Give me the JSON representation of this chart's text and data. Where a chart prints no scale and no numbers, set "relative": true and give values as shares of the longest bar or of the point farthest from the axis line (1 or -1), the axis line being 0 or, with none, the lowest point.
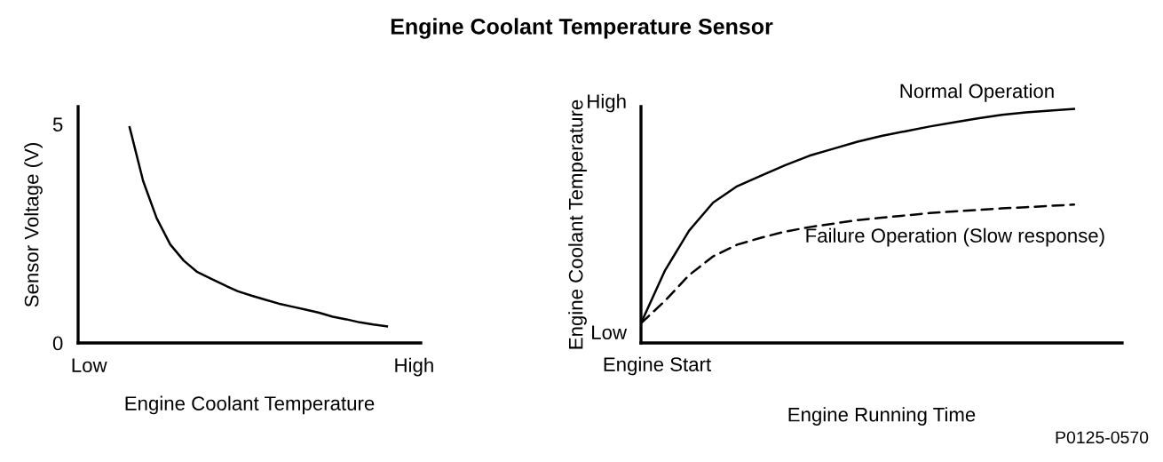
{
  "chart_data": [
    {
      "type": "line",
      "title": "Engine Coolant Temperature Sensor",
      "xlabel": "Engine Coolant Temperature",
      "ylabel": "Sensor Voltage (V)",
      "categories": [
        "Low",
        null,
        null,
        null,
        null,
        null,
        null,
        null,
        null,
        null,
        null,
        null,
        null,
        null,
        null,
        null,
        null,
        null,
        null,
        null,
        null,
        null,
        null,
        null,
        "High"
      ],
      "series": [
        {
          "color": "#000000",
          "values": [
            null,
            null,
            null,
            4.93,
            3.7,
            2.85,
            2.25,
            1.88,
            1.62,
            1.47,
            1.32,
            1.18,
            1.08,
            0.99,
            0.9,
            0.83,
            0.76,
            0.69,
            0.6,
            0.54,
            0.47,
            0.42,
            0.38,
            null,
            null
          ]
        }
      ],
      "ylim": [
        0,
        5.4
      ],
      "yticks": [
        0,
        5
      ]
    },
    {
      "type": "line",
      "relative": true,
      "xlabel": "Engine Running Time",
      "ylabel": "Engine Coolant Temperature",
      "categories": [
        null,
        null,
        null,
        null,
        null,
        null,
        null,
        null,
        null,
        null,
        null,
        null,
        null,
        null,
        null,
        null,
        null,
        null,
        null
      ],
      "series": [
        {
          "name": "Normal Operation",
          "color": "#000000",
          "line_style": "solid",
          "values": [
            0.084,
            0.31,
            0.48,
            0.6,
            0.67,
            0.715,
            0.76,
            0.8,
            0.83,
            0.86,
            0.885,
            0.905,
            0.925,
            0.943,
            0.96,
            0.975,
            0.985,
            0.993,
            1.0
          ]
        },
        {
          "name": "Failure Operation (Slow response)",
          "color": "#000000",
          "line_style": "dashed",
          "values": [
            0.084,
            0.18,
            0.29,
            0.37,
            0.42,
            0.45,
            0.476,
            0.495,
            0.51,
            0.525,
            0.535,
            0.545,
            0.555,
            0.562,
            0.568,
            0.575,
            0.58,
            0.586,
            0.591
          ]
        }
      ],
      "annotations": [
        "High",
        "Low",
        "Engine Start",
        "P0125-0570"
      ]
    }
  ]
}
